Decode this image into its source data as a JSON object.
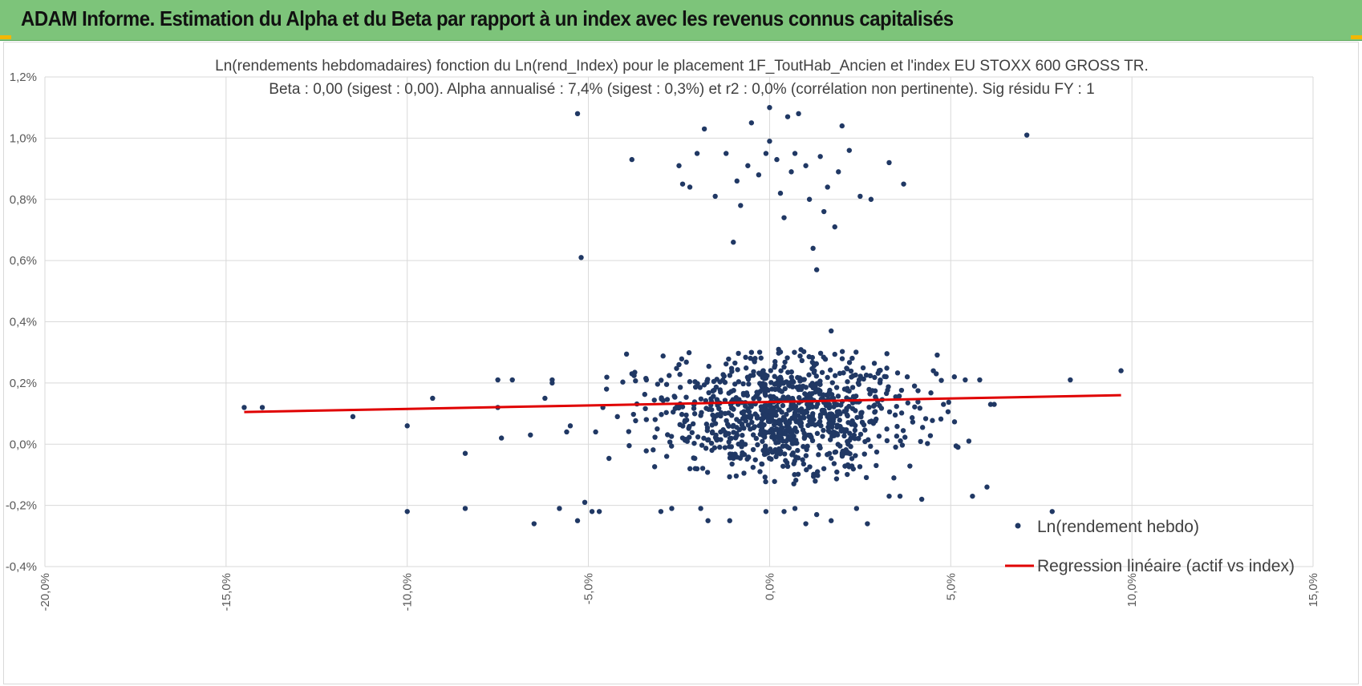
{
  "header": {
    "title": "ADAM Informe. Estimation du Alpha et du Beta par rapport à un index avec les revenus connus capitalisés"
  },
  "colors": {
    "header_bg": "#7dc47a",
    "points": "#203864",
    "regression": "#e00000",
    "corner_marks": "#f2b705"
  },
  "chart_data": {
    "type": "scatter",
    "title_lines": [
      "Ln(rendements hebdomadaires) fonction du Ln(rend_Index) pour le placement 1F_ToutHab_Ancien et l'index EU STOXX 600 GROSS TR.",
      "Beta : 0,00 (sigest : 0,00). Alpha annualisé : 7,4% (sigest : 0,3%) et r2 : 0,0% (corrélation non pertinente). Sig résidu FY : 1"
    ],
    "xlim": [
      -20,
      15
    ],
    "ylim": [
      -0.4,
      1.2
    ],
    "x_ticks": [
      "-20,0%",
      "-15,0%",
      "-10,0%",
      "-5,0%",
      "0,0%",
      "5,0%",
      "10,0%",
      "15,0%"
    ],
    "y_ticks": [
      "1,2%",
      "1,0%",
      "0,8%",
      "0,6%",
      "0,4%",
      "0,2%",
      "0,0%",
      "-0,2%",
      "-0,4%"
    ],
    "grid": true,
    "legend_position": "bottom-right",
    "series": [
      {
        "name": "Ln(rendement hebdo)",
        "kind": "points",
        "points": [
          [
            -14.5,
            0.12
          ],
          [
            -14.0,
            0.12
          ],
          [
            -11.5,
            0.09
          ],
          [
            -10.0,
            0.06
          ],
          [
            -10.0,
            -0.22
          ],
          [
            -9.3,
            0.15
          ],
          [
            -8.4,
            -0.03
          ],
          [
            -8.4,
            -0.21
          ],
          [
            -7.5,
            0.21
          ],
          [
            -7.1,
            0.21
          ],
          [
            -7.4,
            0.02
          ],
          [
            -7.5,
            0.12
          ],
          [
            -6.6,
            0.03
          ],
          [
            -6.5,
            -0.26
          ],
          [
            -6.2,
            0.15
          ],
          [
            -6.0,
            0.21
          ],
          [
            -6.0,
            0.2
          ],
          [
            -5.8,
            -0.21
          ],
          [
            -5.6,
            0.04
          ],
          [
            -5.5,
            0.06
          ],
          [
            -5.3,
            -0.25
          ],
          [
            -5.1,
            -0.19
          ],
          [
            -4.9,
            -0.22
          ],
          [
            -4.7,
            -0.22
          ],
          [
            -4.8,
            0.04
          ],
          [
            -4.6,
            0.12
          ],
          [
            -4.5,
            0.18
          ],
          [
            -4.2,
            0.09
          ],
          [
            -3.8,
            0.23
          ],
          [
            -3.4,
            0.21
          ],
          [
            -3.0,
            -0.22
          ],
          [
            -2.7,
            -0.21
          ],
          [
            -2.5,
            0.26
          ],
          [
            -1.9,
            -0.21
          ],
          [
            -1.7,
            -0.25
          ],
          [
            -1.1,
            -0.25
          ],
          [
            -0.5,
            0.3
          ],
          [
            -0.1,
            -0.22
          ],
          [
            0.4,
            -0.22
          ],
          [
            0.7,
            -0.21
          ],
          [
            1.0,
            -0.26
          ],
          [
            1.3,
            -0.23
          ],
          [
            1.7,
            0.37
          ],
          [
            1.7,
            -0.25
          ],
          [
            2.4,
            -0.21
          ],
          [
            2.7,
            -0.26
          ],
          [
            3.3,
            -0.17
          ],
          [
            3.6,
            -0.17
          ],
          [
            3.8,
            0.22
          ],
          [
            4.0,
            0.19
          ],
          [
            4.2,
            -0.18
          ],
          [
            4.6,
            0.23
          ],
          [
            4.8,
            0.13
          ],
          [
            5.1,
            0.22
          ],
          [
            5.4,
            0.21
          ],
          [
            5.2,
            -0.01
          ],
          [
            5.5,
            0.01
          ],
          [
            5.6,
            -0.17
          ],
          [
            5.8,
            0.21
          ],
          [
            6.0,
            -0.14
          ],
          [
            6.1,
            0.13
          ],
          [
            6.2,
            0.13
          ],
          [
            7.8,
            -0.22
          ],
          [
            8.3,
            0.21
          ],
          [
            9.7,
            0.24
          ],
          [
            -5.3,
            1.08
          ],
          [
            -5.2,
            0.61
          ],
          [
            -3.8,
            0.93
          ],
          [
            -2.5,
            0.91
          ],
          [
            -2.4,
            0.85
          ],
          [
            -2.2,
            0.84
          ],
          [
            -2.0,
            0.95
          ],
          [
            -1.8,
            1.03
          ],
          [
            -1.5,
            0.81
          ],
          [
            -1.2,
            0.95
          ],
          [
            -1.0,
            0.66
          ],
          [
            -0.9,
            0.86
          ],
          [
            -0.8,
            0.78
          ],
          [
            -0.6,
            0.91
          ],
          [
            -0.5,
            1.05
          ],
          [
            -0.3,
            0.88
          ],
          [
            -0.1,
            0.95
          ],
          [
            0.0,
            1.1
          ],
          [
            0.0,
            0.99
          ],
          [
            0.2,
            0.93
          ],
          [
            0.3,
            0.82
          ],
          [
            0.4,
            0.74
          ],
          [
            0.5,
            1.07
          ],
          [
            0.6,
            0.89
          ],
          [
            0.7,
            0.95
          ],
          [
            0.8,
            1.08
          ],
          [
            1.0,
            0.91
          ],
          [
            1.1,
            0.8
          ],
          [
            1.2,
            0.64
          ],
          [
            1.3,
            0.57
          ],
          [
            1.4,
            0.94
          ],
          [
            1.5,
            0.76
          ],
          [
            1.6,
            0.84
          ],
          [
            1.8,
            0.71
          ],
          [
            1.9,
            0.89
          ],
          [
            2.0,
            1.04
          ],
          [
            2.2,
            0.96
          ],
          [
            2.5,
            0.81
          ],
          [
            2.8,
            0.8
          ],
          [
            3.3,
            0.92
          ],
          [
            3.7,
            0.85
          ],
          [
            7.1,
            1.01
          ]
        ]
      },
      {
        "name": "Regression linéaire (actif vs index)",
        "kind": "line",
        "points": [
          [
            -14.5,
            0.105
          ],
          [
            9.7,
            0.16
          ]
        ]
      }
    ]
  }
}
